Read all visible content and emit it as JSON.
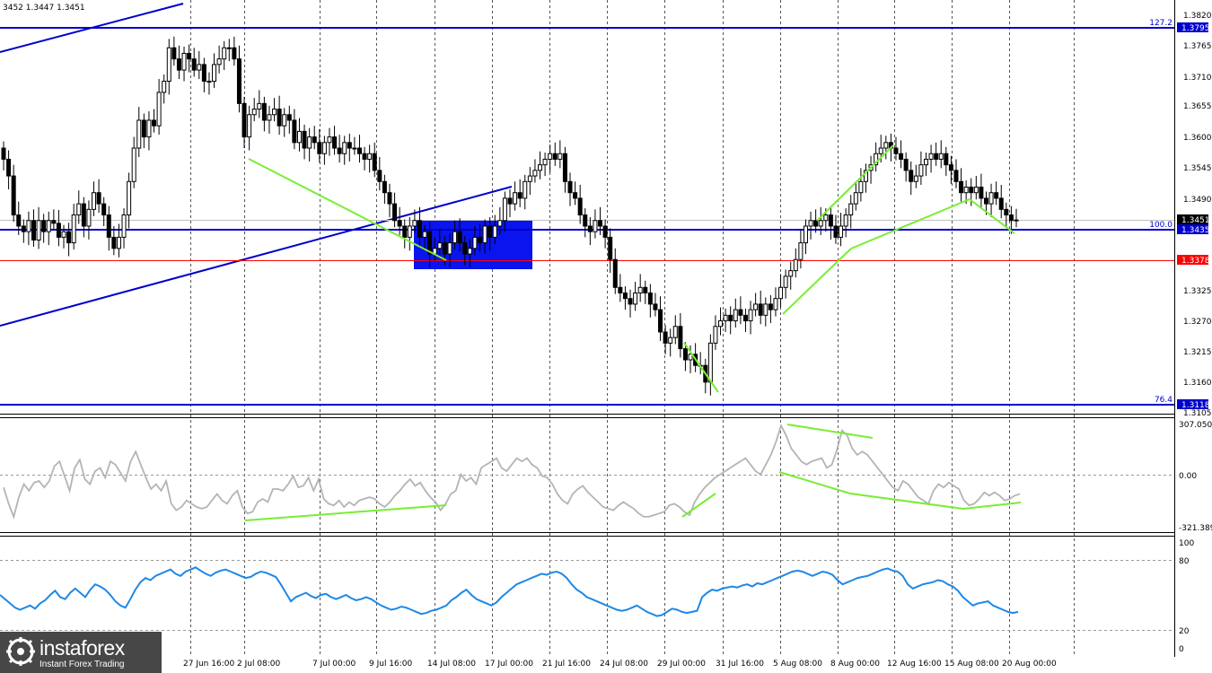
{
  "header": {
    "ohlc_text": "3452 1.3447 1.3451"
  },
  "brand": {
    "name": "instaforex",
    "tagline": "Instant Forex Trading"
  },
  "colors": {
    "candle": "#000000",
    "level": "#0000cc",
    "support": "#ff0000",
    "pattern": "#77ee33",
    "cci": "#b4b4b4",
    "rsi": "#1e88e5",
    "zone": "#0a14ee",
    "grid": "#555555"
  },
  "chart_data": [
    {
      "type": "candlestick",
      "title": "",
      "ylim": [
        1.3105,
        1.382
      ],
      "y_ticks": [
        "1.3820",
        "1.3765",
        "1.3710",
        "1.3655",
        "1.3600",
        "1.3545",
        "1.3490",
        "1.3325",
        "1.3270",
        "1.3215",
        "1.3160",
        "1.3105"
      ],
      "x_ticks": [
        "27 Jun 16:00",
        "2 Jul 08:00",
        "7 Jul 00:00",
        "9 Jul 16:00",
        "14 Jul 08:00",
        "17 Jul 00:00",
        "21 Jul 16:00",
        "24 Jul 08:00",
        "29 Jul 00:00",
        "31 Jul 16:00",
        "5 Aug 08:00",
        "8 Aug 00:00",
        "12 Aug 16:00",
        "15 Aug 08:00",
        "20 Aug 00:00"
      ],
      "closes": [
        1.356,
        1.353,
        1.346,
        1.344,
        1.343,
        1.345,
        1.3415,
        1.345,
        1.343,
        1.345,
        1.3445,
        1.342,
        1.343,
        1.341,
        1.346,
        1.348,
        1.344,
        1.347,
        1.35,
        1.348,
        1.346,
        1.342,
        1.34,
        1.342,
        1.346,
        1.352,
        1.358,
        1.363,
        1.36,
        1.363,
        1.362,
        1.368,
        1.37,
        1.376,
        1.374,
        1.372,
        1.375,
        1.374,
        1.372,
        1.373,
        1.37,
        1.37,
        1.373,
        1.374,
        1.376,
        1.376,
        1.374,
        1.366,
        1.36,
        1.364,
        1.365,
        1.366,
        1.363,
        1.364,
        1.365,
        1.362,
        1.364,
        1.363,
        1.359,
        1.361,
        1.358,
        1.36,
        1.359,
        1.357,
        1.359,
        1.36,
        1.358,
        1.357,
        1.359,
        1.358,
        1.358,
        1.357,
        1.356,
        1.357,
        1.354,
        1.352,
        1.35,
        1.348,
        1.345,
        1.344,
        1.342,
        1.344,
        1.345,
        1.342,
        1.343,
        1.339,
        1.34,
        1.341,
        1.339,
        1.341,
        1.343,
        1.341,
        1.339,
        1.34,
        1.342,
        1.341,
        1.344,
        1.342,
        1.344,
        1.345,
        1.349,
        1.348,
        1.35,
        1.349,
        1.352,
        1.353,
        1.354,
        1.355,
        1.356,
        1.357,
        1.356,
        1.357,
        1.352,
        1.35,
        1.349,
        1.346,
        1.344,
        1.343,
        1.345,
        1.344,
        1.342,
        1.338,
        1.333,
        1.332,
        1.331,
        1.33,
        1.332,
        1.333,
        1.332,
        1.33,
        1.329,
        1.325,
        1.323,
        1.324,
        1.326,
        1.322,
        1.32,
        1.321,
        1.319,
        1.319,
        1.316,
        1.323,
        1.326,
        1.327,
        1.328,
        1.327,
        1.329,
        1.328,
        1.327,
        1.329,
        1.33,
        1.328,
        1.33,
        1.329,
        1.331,
        1.333,
        1.335,
        1.336,
        1.338,
        1.341,
        1.344,
        1.345,
        1.344,
        1.345,
        1.346,
        1.344,
        1.342,
        1.344,
        1.346,
        1.348,
        1.35,
        1.352,
        1.354,
        1.355,
        1.357,
        1.358,
        1.359,
        1.358,
        1.357,
        1.356,
        1.354,
        1.352,
        1.353,
        1.355,
        1.356,
        1.357,
        1.356,
        1.357,
        1.355,
        1.354,
        1.352,
        1.35,
        1.351,
        1.35,
        1.351,
        1.349,
        1.348,
        1.35,
        1.349,
        1.347,
        1.346,
        1.345,
        1.3451
      ],
      "levels": [
        {
          "value": 1.3795,
          "label": "1.3795",
          "fib": "127.2"
        },
        {
          "value": 1.3435,
          "label": "1.3435",
          "fib": "100.0"
        },
        {
          "value": 1.3118,
          "label": "1.3118",
          "fib": "76.4"
        }
      ],
      "support": {
        "value": 1.3378,
        "label": "1.3378"
      },
      "current": {
        "value": 1.3451,
        "label": "1.3451"
      }
    },
    {
      "type": "line",
      "indicator": "CCI",
      "ylim": [
        -321.3899,
        307.0503
      ],
      "y_ticks": [
        "307.0503",
        "0.00",
        "-321.3899"
      ],
      "values": [
        -80,
        -180,
        -260,
        -140,
        -60,
        -100,
        -50,
        -40,
        -80,
        -40,
        50,
        80,
        -10,
        -100,
        40,
        90,
        -30,
        -60,
        20,
        40,
        -20,
        80,
        60,
        10,
        -40,
        80,
        140,
        60,
        -20,
        -90,
        -60,
        -100,
        -40,
        -180,
        -220,
        -200,
        -160,
        -180,
        -200,
        -210,
        -200,
        -160,
        -120,
        -160,
        -180,
        -130,
        -100,
        -200,
        -240,
        -230,
        -170,
        -150,
        -170,
        -90,
        -90,
        -100,
        -60,
        -10,
        -80,
        -70,
        -20,
        -100,
        -30,
        -150,
        -180,
        -190,
        -160,
        -200,
        -170,
        -190,
        -160,
        -150,
        -140,
        -150,
        -180,
        -200,
        -170,
        -130,
        -100,
        -60,
        -30,
        -70,
        -50,
        -100,
        -140,
        -170,
        -220,
        -180,
        -120,
        -100,
        0,
        -40,
        -20,
        -60,
        40,
        60,
        80,
        100,
        40,
        20,
        60,
        100,
        80,
        100,
        60,
        40,
        -10,
        -20,
        -60,
        -120,
        -160,
        -180,
        -120,
        -90,
        -70,
        -110,
        -140,
        -170,
        -200,
        -210,
        -220,
        -190,
        -170,
        -190,
        -210,
        -240,
        -260,
        -260,
        -250,
        -240,
        -230,
        -190,
        -180,
        -200,
        -230,
        -250,
        -170,
        -120,
        -80,
        -50,
        -20,
        0,
        20,
        40,
        60,
        80,
        100,
        60,
        20,
        0,
        60,
        120,
        200,
        300,
        240,
        160,
        120,
        80,
        60,
        80,
        90,
        100,
        40,
        60,
        150,
        270,
        240,
        160,
        120,
        140,
        120,
        80,
        40,
        0,
        -40,
        -80,
        -100,
        -40,
        -60,
        -100,
        -140,
        -160,
        -180,
        -100,
        -60,
        -80,
        -50,
        -70,
        -90,
        -160,
        -190,
        -180,
        -150,
        -110,
        -130,
        -110,
        -130,
        -160,
        -150,
        -130,
        -120
      ]
    },
    {
      "type": "line",
      "indicator": "RSI",
      "ylim": [
        0,
        100
      ],
      "y_ticks": [
        "100",
        "80",
        "20",
        "0"
      ],
      "levels": [
        80,
        20
      ],
      "values": [
        50,
        46,
        42,
        38,
        36,
        38,
        40,
        37,
        42,
        45,
        50,
        54,
        48,
        46,
        52,
        56,
        52,
        48,
        55,
        60,
        58,
        55,
        50,
        44,
        40,
        38,
        46,
        55,
        62,
        66,
        64,
        68,
        70,
        72,
        74,
        70,
        68,
        72,
        74,
        76,
        73,
        70,
        68,
        71,
        73,
        74,
        72,
        70,
        68,
        66,
        67,
        70,
        72,
        71,
        69,
        67,
        60,
        52,
        44,
        48,
        50,
        52,
        49,
        47,
        50,
        51,
        48,
        46,
        48,
        50,
        47,
        45,
        46,
        48,
        46,
        43,
        40,
        38,
        36,
        37,
        39,
        38,
        36,
        34,
        32,
        33,
        35,
        36,
        38,
        40,
        45,
        48,
        52,
        55,
        50,
        46,
        44,
        42,
        40,
        43,
        48,
        52,
        56,
        60,
        62,
        64,
        66,
        68,
        70,
        69,
        71,
        72,
        70,
        66,
        60,
        55,
        52,
        48,
        46,
        44,
        42,
        40,
        38,
        36,
        35,
        36,
        38,
        40,
        37,
        34,
        32,
        30,
        31,
        34,
        37,
        36,
        34,
        33,
        34,
        35,
        48,
        52,
        55,
        54,
        56,
        57,
        58,
        57,
        59,
        60,
        58,
        61,
        60,
        62,
        64,
        66,
        68,
        70,
        72,
        73,
        72,
        70,
        68,
        70,
        72,
        71,
        69,
        64,
        60,
        62,
        64,
        66,
        67,
        68,
        70,
        72,
        74,
        75,
        73,
        72,
        68,
        60,
        56,
        58,
        60,
        61,
        62,
        64,
        63,
        60,
        58,
        54,
        48,
        44,
        40,
        42,
        43,
        44,
        40,
        38,
        36,
        34,
        33,
        34
      ]
    }
  ]
}
